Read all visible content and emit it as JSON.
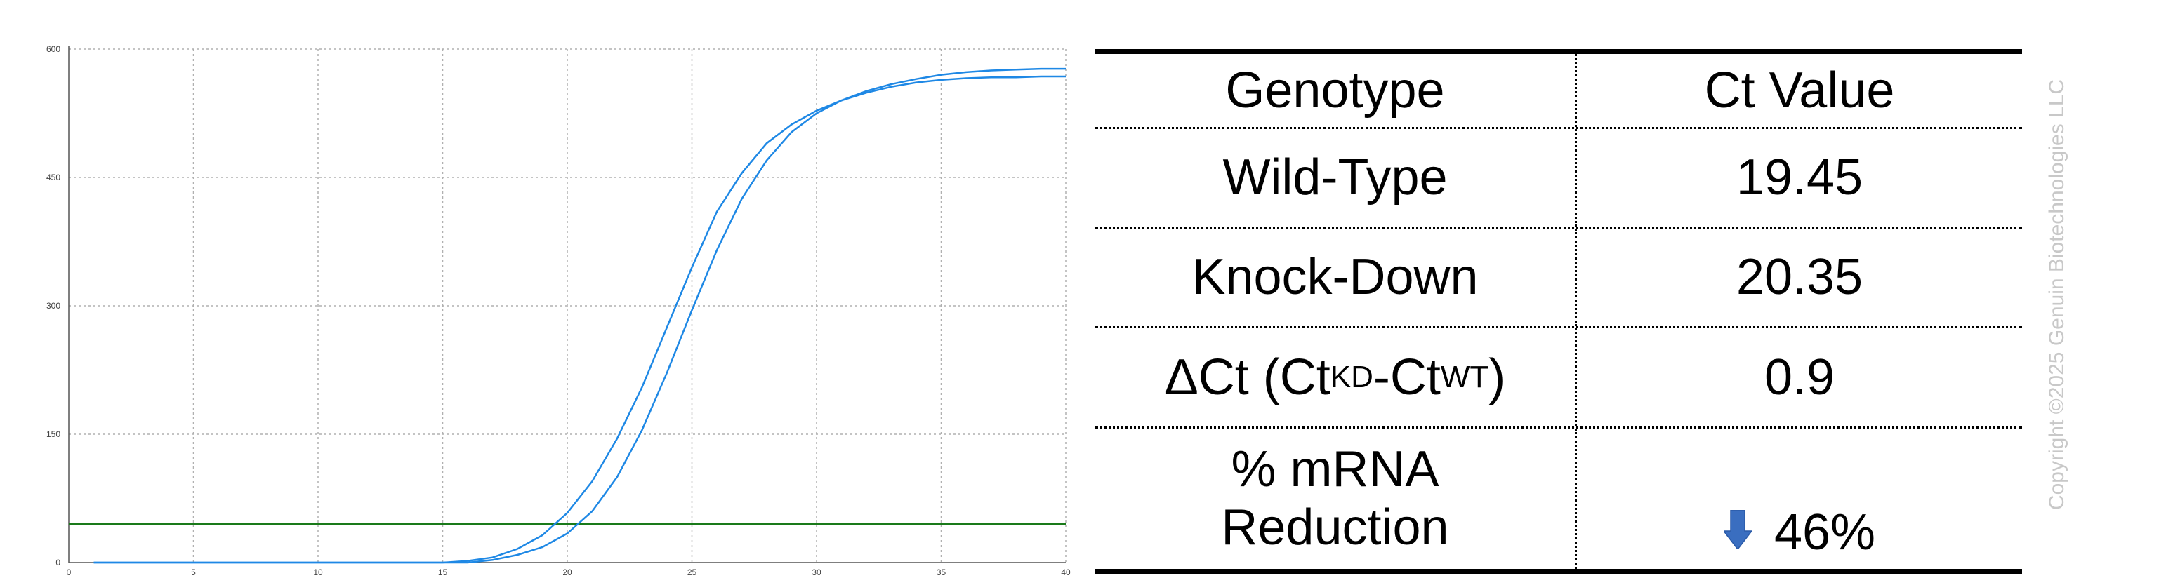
{
  "colors": {
    "curve": "#1e88e5",
    "threshold": "#1a7a1a",
    "grid": "#b0b0b0",
    "arrow": "#3a6ec0",
    "watermark": "#c8c8c8"
  },
  "chart_data": {
    "type": "line",
    "title": "",
    "xlabel": "",
    "ylabel": "",
    "xlim": [
      0,
      40
    ],
    "ylim": [
      0,
      600
    ],
    "xticks": [
      0,
      5,
      10,
      15,
      20,
      25,
      30,
      35,
      40
    ],
    "yticks": [
      0,
      150,
      300,
      450,
      600
    ],
    "grid": true,
    "threshold": 45,
    "x": [
      1,
      2,
      3,
      4,
      5,
      6,
      7,
      8,
      9,
      10,
      11,
      12,
      13,
      14,
      15,
      16,
      17,
      18,
      19,
      20,
      21,
      22,
      23,
      24,
      25,
      26,
      27,
      28,
      29,
      30,
      31,
      32,
      33,
      34,
      35,
      36,
      37,
      38,
      39,
      40
    ],
    "series": [
      {
        "values": [
          0,
          0,
          0,
          0,
          0,
          0,
          0,
          0,
          0,
          0,
          0,
          0,
          0,
          0,
          0,
          2,
          6,
          16,
          32,
          58,
          95,
          145,
          205,
          275,
          345,
          410,
          455,
          490,
          512,
          528,
          540,
          549,
          556,
          561,
          564,
          566,
          567,
          567,
          568,
          568
        ]
      },
      {
        "values": [
          0,
          0,
          0,
          0,
          0,
          0,
          0,
          0,
          0,
          0,
          0,
          0,
          0,
          0,
          0,
          0,
          3,
          9,
          18,
          34,
          60,
          100,
          155,
          222,
          295,
          365,
          425,
          470,
          503,
          525,
          540,
          551,
          559,
          565,
          570,
          573,
          575,
          576,
          577,
          577
        ]
      }
    ]
  },
  "table": {
    "headers": [
      "Genotype",
      "Ct Value"
    ],
    "rows": [
      {
        "label": "Wild-Type",
        "value": "19.45"
      },
      {
        "label": "Knock-Down",
        "value": "20.35"
      },
      {
        "label_main": "ΔCt (Ct",
        "label_sub1": "KD",
        "label_mid": "-Ct",
        "label_sub2": "WT",
        "label_end": ")",
        "value": "0.9"
      },
      {
        "label_line1": "% mRNA",
        "label_line2": "Reduction",
        "value": "46%",
        "icon": "down-arrow-icon"
      }
    ]
  },
  "watermark": "Copyright ©2025 Genuin Biotechnologies LLC"
}
